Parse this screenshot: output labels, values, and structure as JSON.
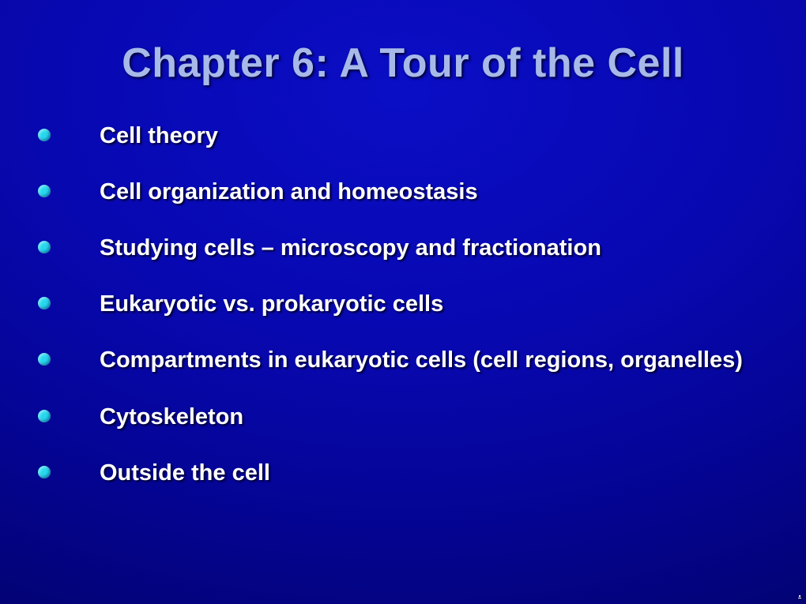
{
  "slide": {
    "title": "Chapter 6: A Tour of the Cell",
    "bullet_color": "#26d7ee",
    "title_color": "#a7b9e8",
    "text_color": "#ffffff",
    "shadow_color": "#000030",
    "background_gradient": [
      "#0a0ec5",
      "#0808b0",
      "#050599",
      "#03037d",
      "#010158"
    ],
    "title_fontsize": 52,
    "item_fontsize": 29,
    "items": [
      {
        "text": "Cell theory"
      },
      {
        "text": "Cell organization and homeostasis"
      },
      {
        "text": "Studying cells – microscopy and fractionation"
      },
      {
        "text": "Eukaryotic vs. prokaryotic cells"
      },
      {
        "text": "Compartments in eukaryotic cells (cell regions, organelles)"
      },
      {
        "text": "Cytoskeleton"
      },
      {
        "text": "Outside the cell"
      }
    ],
    "corner_mark": "."
  }
}
